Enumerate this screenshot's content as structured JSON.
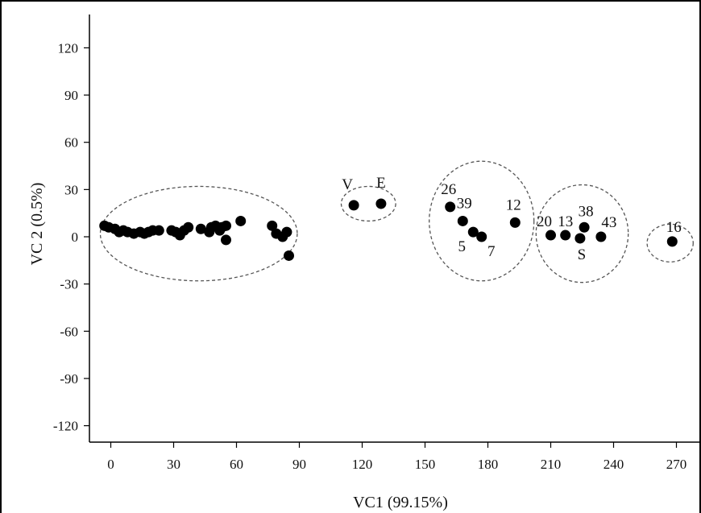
{
  "chart_data": {
    "type": "scatter",
    "title": "",
    "xlabel": "VC1 (99.15%)",
    "ylabel": "VC 2 (0.5%)",
    "xlim": [
      -10,
      273
    ],
    "ylim": [
      -135,
      140
    ],
    "xticks": [
      0,
      30,
      60,
      90,
      120,
      150,
      180,
      210,
      240,
      270
    ],
    "yticks": [
      120,
      90,
      60,
      30,
      0,
      -30,
      -60,
      -90,
      -120
    ],
    "grid": false,
    "colors": {
      "point": "#000000",
      "text": "#111111",
      "highlight": "#e8202a"
    },
    "series": [
      {
        "points": [
          {
            "x": -3,
            "y": 7
          },
          {
            "x": -1,
            "y": 6
          },
          {
            "x": 2,
            "y": 5
          },
          {
            "x": 4,
            "y": 3
          },
          {
            "x": 6,
            "y": 4
          },
          {
            "x": 8,
            "y": 3
          },
          {
            "x": 11,
            "y": 2
          },
          {
            "x": 14,
            "y": 3
          },
          {
            "x": 16,
            "y": 2
          },
          {
            "x": 18,
            "y": 3
          },
          {
            "x": 20,
            "y": 4
          },
          {
            "x": 23,
            "y": 4
          },
          {
            "x": 29,
            "y": 4
          },
          {
            "x": 31,
            "y": 3
          },
          {
            "x": 33,
            "y": 1
          },
          {
            "x": 35,
            "y": 4
          },
          {
            "x": 37,
            "y": 6
          },
          {
            "x": 43,
            "y": 5
          },
          {
            "x": 47,
            "y": 3
          },
          {
            "x": 48,
            "y": 6
          },
          {
            "x": 50,
            "y": 7
          },
          {
            "x": 52,
            "y": 4
          },
          {
            "x": 53,
            "y": 6
          },
          {
            "x": 55,
            "y": 7
          },
          {
            "x": 55,
            "y": -2
          },
          {
            "x": 62,
            "y": 10
          },
          {
            "x": 77,
            "y": 7
          },
          {
            "x": 79,
            "y": 2
          },
          {
            "x": 82,
            "y": 0
          },
          {
            "x": 84,
            "y": 3
          },
          {
            "x": 85,
            "y": -12
          },
          {
            "x": 116,
            "y": 20
          },
          {
            "x": 129,
            "y": 21
          },
          {
            "x": 162,
            "y": 19
          },
          {
            "x": 168,
            "y": 10
          },
          {
            "x": 173,
            "y": 3
          },
          {
            "x": 177,
            "y": 0
          },
          {
            "x": 193,
            "y": 9
          },
          {
            "x": 210,
            "y": 1
          },
          {
            "x": 217,
            "y": 1
          },
          {
            "x": 224,
            "y": -1
          },
          {
            "x": 226,
            "y": 6
          },
          {
            "x": 234,
            "y": 0
          },
          {
            "x": 268,
            "y": -3
          }
        ]
      }
    ],
    "labels": [
      {
        "text": "V",
        "x": 116,
        "y": 20,
        "color": "#e8202a"
      },
      {
        "text": "E",
        "x": 129,
        "y": 21,
        "color": "#e8202a"
      },
      {
        "text": "26",
        "x": 162,
        "y": 19,
        "color": "#111111"
      },
      {
        "text": "39",
        "x": 168,
        "y": 10,
        "color": "#111111"
      },
      {
        "text": "5",
        "x": 173,
        "y": 3,
        "color": "#111111"
      },
      {
        "text": "7",
        "x": 177,
        "y": 0,
        "color": "#111111"
      },
      {
        "text": "12",
        "x": 193,
        "y": 9,
        "color": "#111111"
      },
      {
        "text": "20",
        "x": 210,
        "y": 1,
        "color": "#111111"
      },
      {
        "text": "13",
        "x": 217,
        "y": 1,
        "color": "#111111"
      },
      {
        "text": "38",
        "x": 226,
        "y": 6,
        "color": "#111111"
      },
      {
        "text": "43",
        "x": 234,
        "y": 0,
        "color": "#111111"
      },
      {
        "text": "S",
        "x": 224,
        "y": -1,
        "color": "#e8202a"
      },
      {
        "text": "16",
        "x": 268,
        "y": -3,
        "color": "#111111"
      }
    ],
    "clusters": [
      {
        "cx": 42,
        "cy": 2,
        "rx": 47,
        "ry": 30
      },
      {
        "cx": 123,
        "cy": 21,
        "rx": 13,
        "ry": 11
      },
      {
        "cx": 177,
        "cy": 10,
        "rx": 25,
        "ry": 38
      },
      {
        "cx": 225,
        "cy": 2,
        "rx": 22,
        "ry": 31
      },
      {
        "cx": 267,
        "cy": -4,
        "rx": 11,
        "ry": 12
      }
    ]
  }
}
